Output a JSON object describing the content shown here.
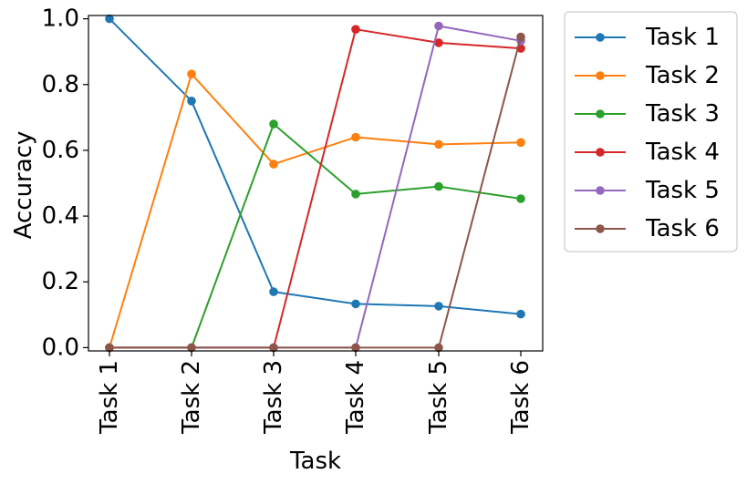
{
  "chart_data": {
    "type": "line",
    "xlabel": "Task",
    "ylabel": "Accuracy",
    "categories": [
      "Task 1",
      "Task 2",
      "Task 3",
      "Task 4",
      "Task 5",
      "Task 6"
    ],
    "yticks": [
      "0.0",
      "0.2",
      "0.4",
      "0.6",
      "0.8",
      "1.0"
    ],
    "ylim": [
      -0.01,
      1.01
    ],
    "grid": false,
    "legend_position": "outside-upper-right",
    "series": [
      {
        "name": "Task 1",
        "color": "#1f77b4",
        "values": [
          1.0,
          0.75,
          0.17,
          0.133,
          0.126,
          0.102
        ]
      },
      {
        "name": "Task 2",
        "color": "#ff7f0e",
        "values": [
          0.0,
          0.832,
          0.558,
          0.64,
          0.618,
          0.624
        ]
      },
      {
        "name": "Task 3",
        "color": "#2ca02c",
        "values": [
          0.0,
          0.0,
          0.68,
          0.467,
          0.49,
          0.453
        ]
      },
      {
        "name": "Task 4",
        "color": "#d62728",
        "values": [
          0.0,
          0.0,
          0.0,
          0.968,
          0.927,
          0.91
        ]
      },
      {
        "name": "Task 5",
        "color": "#9467bd",
        "values": [
          0.0,
          0.0,
          0.0,
          0.0,
          0.978,
          0.933
        ]
      },
      {
        "name": "Task 6",
        "color": "#8c564b",
        "values": [
          0.0,
          0.0,
          0.0,
          0.0,
          0.0,
          0.945
        ]
      }
    ]
  }
}
